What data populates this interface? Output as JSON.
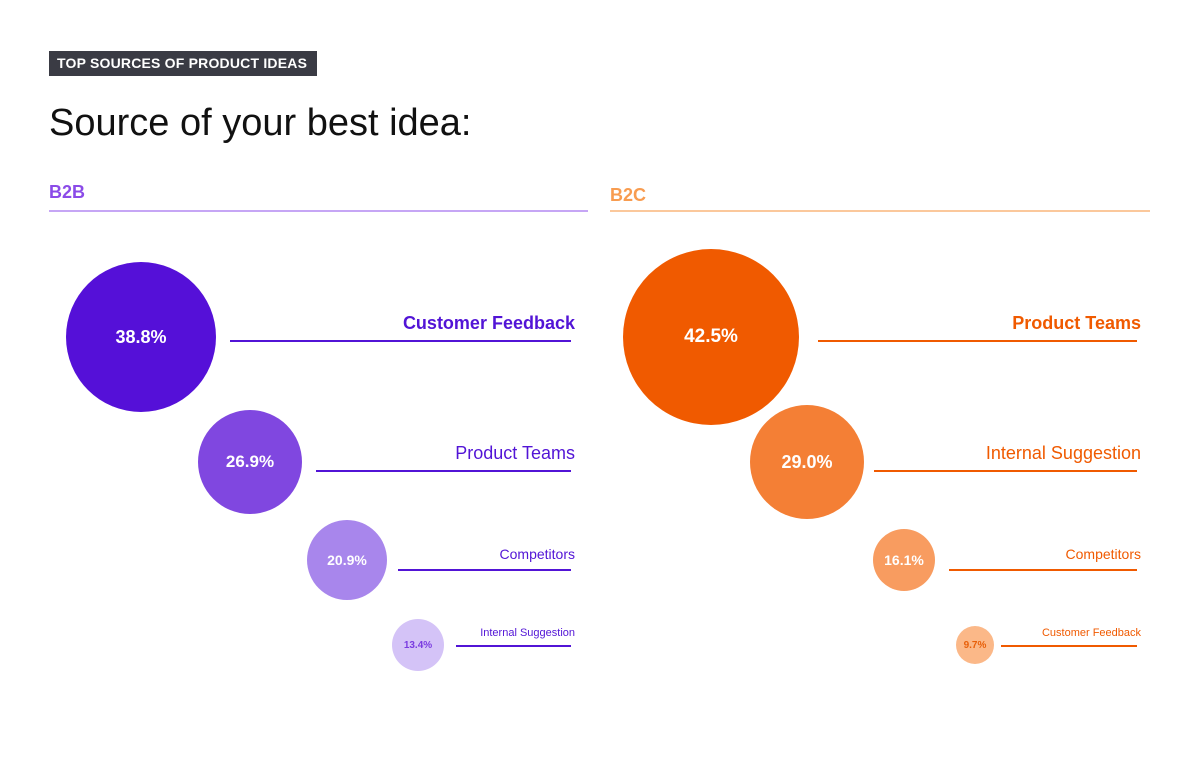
{
  "header": {
    "tag": "TOP SOURCES OF PRODUCT IDEAS",
    "title": "Source of your best idea:"
  },
  "chart_data": [
    {
      "type": "bubble",
      "title": "B2B",
      "color": "#8b4be8",
      "unit": "%",
      "categories": [
        "Customer Feedback",
        "Product Teams",
        "Competitors",
        "Internal Suggestion"
      ],
      "values": [
        38.8,
        26.9,
        20.9,
        13.4
      ],
      "labels": [
        "38.8%",
        "26.9%",
        "20.9%",
        "13.4%"
      ],
      "colors": [
        "#5510d8",
        "#8047e0",
        "#a886ec",
        "#d4c3f7"
      ],
      "label_color": "#5214d6"
    },
    {
      "type": "bubble",
      "title": "B2C",
      "color": "#f89c50",
      "unit": "%",
      "categories": [
        "Product Teams",
        "Internal Suggestion",
        "Competitors",
        "Customer Feedback"
      ],
      "values": [
        42.5,
        29.0,
        16.1,
        9.7
      ],
      "labels": [
        "42.5%",
        "29.0%",
        "16.1%",
        "9.7%"
      ],
      "colors": [
        "#f05a00",
        "#f47f35",
        "#f89c60",
        "#fbb888"
      ],
      "label_color": "#f05a00"
    }
  ]
}
